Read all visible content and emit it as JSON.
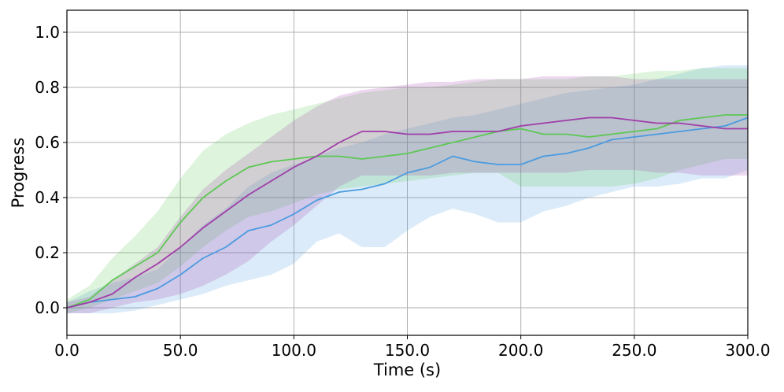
{
  "chart_data": {
    "type": "line",
    "title": "",
    "xlabel": "Time (s)",
    "ylabel": "Progress",
    "xlim": [
      0,
      300
    ],
    "ylim": [
      -0.1,
      1.08
    ],
    "xticks": [
      0,
      50,
      100,
      150,
      200,
      250,
      300
    ],
    "xtick_labels": [
      "0.0",
      "50.0",
      "100.0",
      "150.0",
      "200.0",
      "250.0",
      "300.0"
    ],
    "yticks": [
      0,
      0.2,
      0.4,
      0.6,
      0.8,
      1.0
    ],
    "ytick_labels": [
      "0.0",
      "0.2",
      "0.4",
      "0.6",
      "0.8",
      "1.0"
    ],
    "grid": true,
    "legend": "none",
    "x": [
      0,
      10,
      20,
      30,
      40,
      50,
      60,
      70,
      80,
      90,
      100,
      110,
      120,
      130,
      140,
      150,
      160,
      170,
      180,
      190,
      200,
      210,
      220,
      230,
      240,
      250,
      260,
      270,
      280,
      290,
      300
    ],
    "series": [
      {
        "color": "#4a9be0",
        "values": [
          0.0,
          0.02,
          0.03,
          0.04,
          0.07,
          0.12,
          0.18,
          0.22,
          0.28,
          0.3,
          0.34,
          0.39,
          0.42,
          0.43,
          0.45,
          0.49,
          0.51,
          0.55,
          0.53,
          0.52,
          0.52,
          0.55,
          0.56,
          0.58,
          0.61,
          0.62,
          0.63,
          0.64,
          0.65,
          0.66,
          0.69
        ],
        "lower": [
          -0.02,
          -0.02,
          -0.02,
          -0.01,
          0.01,
          0.03,
          0.05,
          0.08,
          0.1,
          0.12,
          0.16,
          0.24,
          0.27,
          0.22,
          0.22,
          0.28,
          0.33,
          0.36,
          0.34,
          0.31,
          0.31,
          0.35,
          0.37,
          0.4,
          0.42,
          0.44,
          0.44,
          0.45,
          0.47,
          0.47,
          0.5
        ],
        "upper": [
          0.02,
          0.06,
          0.09,
          0.11,
          0.14,
          0.22,
          0.3,
          0.36,
          0.44,
          0.49,
          0.52,
          0.55,
          0.58,
          0.6,
          0.63,
          0.65,
          0.67,
          0.69,
          0.7,
          0.72,
          0.74,
          0.76,
          0.78,
          0.79,
          0.8,
          0.81,
          0.83,
          0.85,
          0.87,
          0.88,
          0.88
        ]
      },
      {
        "color": "#5cc853",
        "values": [
          0.0,
          0.03,
          0.1,
          0.15,
          0.2,
          0.31,
          0.4,
          0.46,
          0.51,
          0.53,
          0.54,
          0.55,
          0.55,
          0.54,
          0.55,
          0.56,
          0.58,
          0.6,
          0.62,
          0.64,
          0.65,
          0.63,
          0.63,
          0.62,
          0.63,
          0.64,
          0.65,
          0.68,
          0.69,
          0.7,
          0.7
        ],
        "lower": [
          -0.02,
          0.0,
          0.03,
          0.06,
          0.09,
          0.15,
          0.22,
          0.28,
          0.33,
          0.35,
          0.38,
          0.41,
          0.43,
          0.44,
          0.45,
          0.46,
          0.47,
          0.48,
          0.49,
          0.49,
          0.44,
          0.44,
          0.44,
          0.44,
          0.44,
          0.45,
          0.47,
          0.5,
          0.52,
          0.54,
          0.54
        ],
        "upper": [
          0.03,
          0.08,
          0.18,
          0.26,
          0.35,
          0.47,
          0.57,
          0.63,
          0.67,
          0.7,
          0.72,
          0.74,
          0.76,
          0.78,
          0.79,
          0.8,
          0.8,
          0.81,
          0.82,
          0.83,
          0.83,
          0.83,
          0.83,
          0.84,
          0.84,
          0.85,
          0.86,
          0.86,
          0.87,
          0.87,
          0.87
        ]
      },
      {
        "color": "#a03da8",
        "values": [
          0.0,
          0.02,
          0.05,
          0.11,
          0.16,
          0.22,
          0.29,
          0.35,
          0.41,
          0.46,
          0.51,
          0.55,
          0.6,
          0.64,
          0.64,
          0.63,
          0.63,
          0.64,
          0.64,
          0.64,
          0.66,
          0.67,
          0.68,
          0.69,
          0.69,
          0.68,
          0.67,
          0.67,
          0.66,
          0.65,
          0.65
        ],
        "lower": [
          -0.02,
          -0.02,
          0.0,
          0.02,
          0.03,
          0.05,
          0.08,
          0.12,
          0.17,
          0.24,
          0.3,
          0.37,
          0.44,
          0.48,
          0.48,
          0.48,
          0.48,
          0.49,
          0.49,
          0.49,
          0.49,
          0.49,
          0.49,
          0.5,
          0.5,
          0.5,
          0.49,
          0.49,
          0.48,
          0.48,
          0.48
        ],
        "upper": [
          0.02,
          0.04,
          0.1,
          0.16,
          0.22,
          0.33,
          0.43,
          0.5,
          0.56,
          0.62,
          0.68,
          0.73,
          0.77,
          0.79,
          0.8,
          0.81,
          0.82,
          0.82,
          0.83,
          0.83,
          0.83,
          0.84,
          0.84,
          0.84,
          0.84,
          0.83,
          0.83,
          0.83,
          0.83,
          0.83,
          0.83
        ]
      }
    ]
  }
}
